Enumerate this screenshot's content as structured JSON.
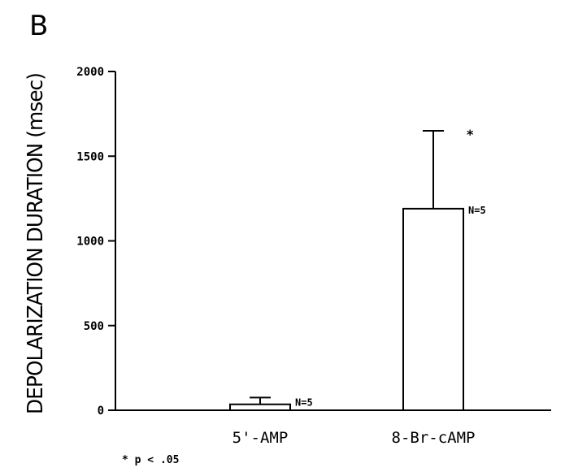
{
  "panel_label": "B",
  "footnote": "* p < .05",
  "chart_data": {
    "type": "bar",
    "title": "",
    "xlabel": "",
    "ylabel": "DEPOLARIZATION DURATION (msec)",
    "ylim": [
      0,
      2000
    ],
    "yticks": [
      "0",
      "500",
      "1000",
      "1500",
      "2000"
    ],
    "categories": [
      "5'-AMP",
      "8-Br-cAMP"
    ],
    "values": [
      35,
      1190
    ],
    "error_upper": [
      75,
      1650
    ],
    "sample_sizes": [
      "N=5",
      "N=5"
    ],
    "significance_markers": [
      "",
      "*"
    ],
    "grid": false,
    "colors": {
      "bar_fill": "#ffffff",
      "stroke": "#000000"
    }
  }
}
